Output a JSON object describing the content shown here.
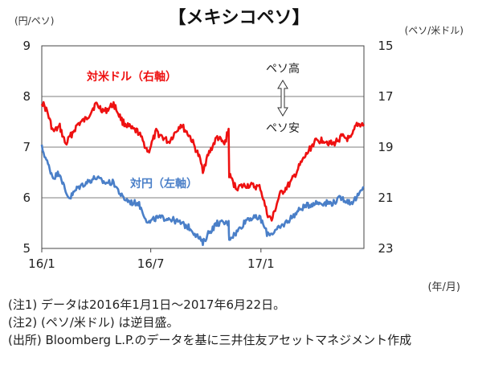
{
  "title": "【メキシコペソ】",
  "left_unit": "(円/ペソ)",
  "right_unit": "(ペソ/米ドル)",
  "x_unit": "(年/月)",
  "notes": [
    "(注1) データは2016年1月1日～2017年6月22日。",
    "(注2) (ペソ/米ドル) は逆目盛。",
    "(出所) Bloomberg L.P.のデータを基に三井住友アセットマネジメント作成"
  ],
  "chart_data": {
    "type": "line",
    "x_ticks": [
      "16/1",
      "16/7",
      "17/1"
    ],
    "x_range": [
      "2016-01-01",
      "2017-06-22"
    ],
    "y_left": {
      "label": "(円/ペソ)",
      "ticks": [
        9,
        8,
        7,
        6,
        5
      ],
      "range": [
        5,
        9
      ]
    },
    "y_right": {
      "label": "(ペソ/米ドル)",
      "ticks": [
        15,
        17,
        19,
        21,
        23
      ],
      "range": [
        15,
        23
      ],
      "inverted": true
    },
    "grid": true,
    "annotations": {
      "up": "ペソ高",
      "down": "ペソ安"
    },
    "series": [
      {
        "name": "対米ドル（右軸）",
        "axis": "right",
        "color": "#ee1111",
        "points": [
          [
            "2016-01-01",
            17.2
          ],
          [
            "2016-01-10",
            17.6
          ],
          [
            "2016-01-20",
            18.4
          ],
          [
            "2016-01-31",
            18.2
          ],
          [
            "2016-02-10",
            18.9
          ],
          [
            "2016-02-17",
            18.6
          ],
          [
            "2016-03-01",
            18.1
          ],
          [
            "2016-03-15",
            17.9
          ],
          [
            "2016-03-31",
            17.3
          ],
          [
            "2016-04-15",
            17.6
          ],
          [
            "2016-04-30",
            17.3
          ],
          [
            "2016-05-15",
            18.0
          ],
          [
            "2016-05-31",
            18.3
          ],
          [
            "2016-06-10",
            18.4
          ],
          [
            "2016-06-27",
            19.2
          ],
          [
            "2016-07-10",
            18.4
          ],
          [
            "2016-07-31",
            18.8
          ],
          [
            "2016-08-20",
            18.1
          ],
          [
            "2016-09-05",
            18.6
          ],
          [
            "2016-09-20",
            19.4
          ],
          [
            "2016-09-26",
            19.9
          ],
          [
            "2016-10-05",
            19.3
          ],
          [
            "2016-10-20",
            18.6
          ],
          [
            "2016-11-01",
            18.9
          ],
          [
            "2016-11-08",
            18.3
          ],
          [
            "2016-11-09",
            20.1
          ],
          [
            "2016-11-20",
            20.6
          ],
          [
            "2016-12-10",
            20.5
          ],
          [
            "2016-12-31",
            20.6
          ],
          [
            "2017-01-11",
            21.6
          ],
          [
            "2017-01-19",
            21.9
          ],
          [
            "2017-02-01",
            20.9
          ],
          [
            "2017-02-20",
            20.4
          ],
          [
            "2017-03-10",
            19.6
          ],
          [
            "2017-03-31",
            18.8
          ],
          [
            "2017-04-15",
            18.7
          ],
          [
            "2017-05-01",
            18.9
          ],
          [
            "2017-05-15",
            18.6
          ],
          [
            "2017-05-31",
            18.7
          ],
          [
            "2017-06-10",
            18.1
          ],
          [
            "2017-06-22",
            18.1
          ]
        ]
      },
      {
        "name": "対円（左軸）",
        "axis": "left",
        "color": "#4a7fc8",
        "points": [
          [
            "2016-01-01",
            7.0
          ],
          [
            "2016-01-10",
            6.7
          ],
          [
            "2016-01-20",
            6.4
          ],
          [
            "2016-01-31",
            6.5
          ],
          [
            "2016-02-10",
            6.1
          ],
          [
            "2016-02-17",
            6.0
          ],
          [
            "2016-03-01",
            6.2
          ],
          [
            "2016-03-15",
            6.3
          ],
          [
            "2016-03-31",
            6.4
          ],
          [
            "2016-04-15",
            6.3
          ],
          [
            "2016-04-30",
            6.3
          ],
          [
            "2016-05-15",
            6.0
          ],
          [
            "2016-05-31",
            5.9
          ],
          [
            "2016-06-10",
            5.9
          ],
          [
            "2016-06-27",
            5.5
          ],
          [
            "2016-07-10",
            5.6
          ],
          [
            "2016-07-31",
            5.6
          ],
          [
            "2016-08-20",
            5.5
          ],
          [
            "2016-09-05",
            5.4
          ],
          [
            "2016-09-20",
            5.2
          ],
          [
            "2016-09-26",
            5.1
          ],
          [
            "2016-10-05",
            5.3
          ],
          [
            "2016-10-20",
            5.5
          ],
          [
            "2016-11-01",
            5.5
          ],
          [
            "2016-11-08",
            5.5
          ],
          [
            "2016-11-09",
            5.2
          ],
          [
            "2016-11-20",
            5.3
          ],
          [
            "2016-12-10",
            5.6
          ],
          [
            "2016-12-31",
            5.6
          ],
          [
            "2017-01-11",
            5.3
          ],
          [
            "2017-01-19",
            5.3
          ],
          [
            "2017-02-01",
            5.4
          ],
          [
            "2017-02-20",
            5.6
          ],
          [
            "2017-03-10",
            5.8
          ],
          [
            "2017-03-31",
            5.9
          ],
          [
            "2017-04-15",
            5.9
          ],
          [
            "2017-05-01",
            5.9
          ],
          [
            "2017-05-15",
            6.0
          ],
          [
            "2017-05-31",
            5.9
          ],
          [
            "2017-06-10",
            6.0
          ],
          [
            "2017-06-22",
            6.2
          ]
        ]
      }
    ]
  }
}
